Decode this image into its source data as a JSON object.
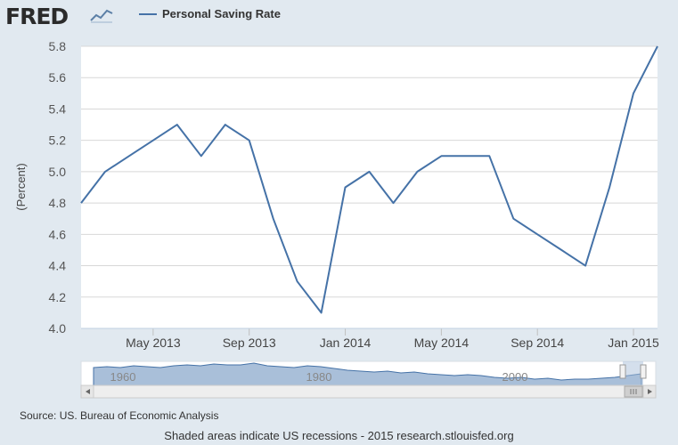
{
  "brand": {
    "name": "FRED"
  },
  "legend": {
    "label": "Personal Saving Rate",
    "color": "#4572a7"
  },
  "footer": {
    "source": "Source: US. Bureau of Economic Analysis",
    "note": "Shaded areas indicate US recessions - 2015 research.stlouisfed.org"
  },
  "navigator": {
    "year_labels": [
      "1960",
      "1980",
      "2000"
    ]
  },
  "chart_data": {
    "type": "line",
    "title": "",
    "xlabel": "",
    "ylabel": "(Percent)",
    "ylim": [
      4.0,
      5.8
    ],
    "yticks": [
      "4.0",
      "4.2",
      "4.4",
      "4.6",
      "4.8",
      "5.0",
      "5.2",
      "5.4",
      "5.6",
      "5.8"
    ],
    "xticks": [
      "May 2013",
      "Sep 2013",
      "Jan 2014",
      "May 2014",
      "Sep 2014",
      "Jan 2015"
    ],
    "grid": true,
    "legend_position": "top",
    "series": [
      {
        "name": "Personal Saving Rate",
        "color": "#4572a7",
        "x": [
          "2013-02",
          "2013-03",
          "2013-04",
          "2013-05",
          "2013-06",
          "2013-07",
          "2013-08",
          "2013-09",
          "2013-10",
          "2013-11",
          "2013-12",
          "2014-01",
          "2014-02",
          "2014-03",
          "2014-04",
          "2014-05",
          "2014-06",
          "2014-07",
          "2014-08",
          "2014-09",
          "2014-10",
          "2014-11",
          "2014-12",
          "2015-01",
          "2015-02"
        ],
        "values": [
          4.8,
          5.0,
          5.1,
          5.2,
          5.3,
          5.1,
          5.3,
          5.2,
          4.7,
          4.3,
          4.1,
          4.9,
          5.0,
          4.8,
          5.0,
          5.1,
          5.1,
          5.1,
          4.7,
          4.6,
          4.5,
          4.4,
          4.9,
          5.5,
          5.8
        ]
      }
    ]
  }
}
